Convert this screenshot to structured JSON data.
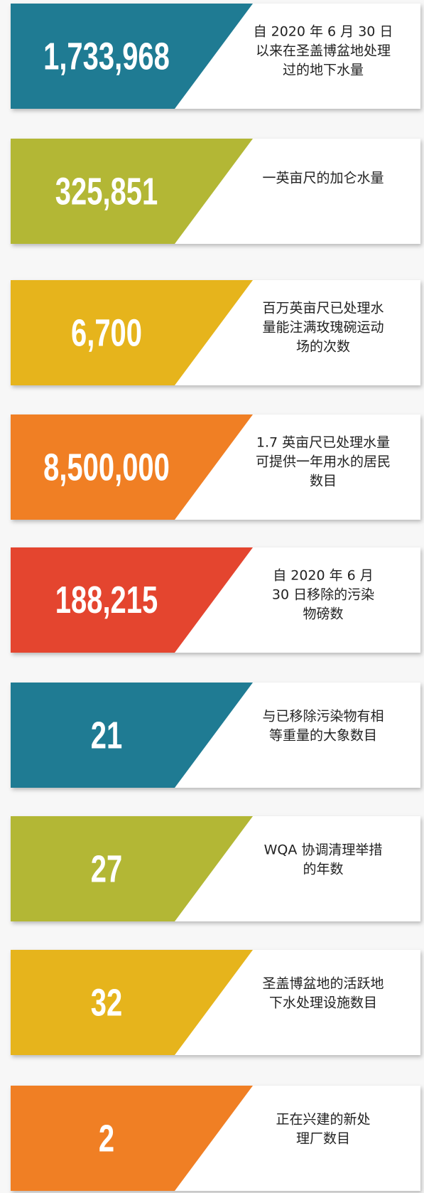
{
  "items": [
    {
      "value": "1,733,968",
      "lines": [
        "自 2020 年 6 月 30 日",
        "以来在圣盖博盆地处理",
        "过的地下水量"
      ],
      "color": "#1f7b93"
    },
    {
      "value": "325,851",
      "lines": [
        "一英亩尺的加仑水量"
      ],
      "color": "#b3b735"
    },
    {
      "value": "6,700",
      "lines": [
        "百万英亩尺已处理水",
        "量能注满玫瑰碗运动",
        "场的次数"
      ],
      "color": "#e6b41c"
    },
    {
      "value": "8,500,000",
      "lines": [
        "1.7 英亩尺已处理水量",
        "可提供一年用水的居民",
        "数目"
      ],
      "color": "#f07f24"
    },
    {
      "value": "188,215",
      "lines": [
        "自 2020 年 6 月",
        "30 日移除的污染",
        "物磅数"
      ],
      "color": "#e4452f"
    },
    {
      "value": "21",
      "lines": [
        "与已移除污染物有相",
        "等重量的大象数目"
      ],
      "color": "#1f7b93"
    },
    {
      "value": "27",
      "lines": [
        "WQA 协调清理举措",
        "的年数"
      ],
      "color": "#b3b735"
    },
    {
      "value": "32",
      "lines": [
        "圣盖博盆地的活跃地",
        "下水处理设施数目"
      ],
      "color": "#e6b41c"
    },
    {
      "value": "2",
      "lines": [
        "正在兴建的新处",
        "理厂数目"
      ],
      "color": "#f07f24"
    }
  ]
}
